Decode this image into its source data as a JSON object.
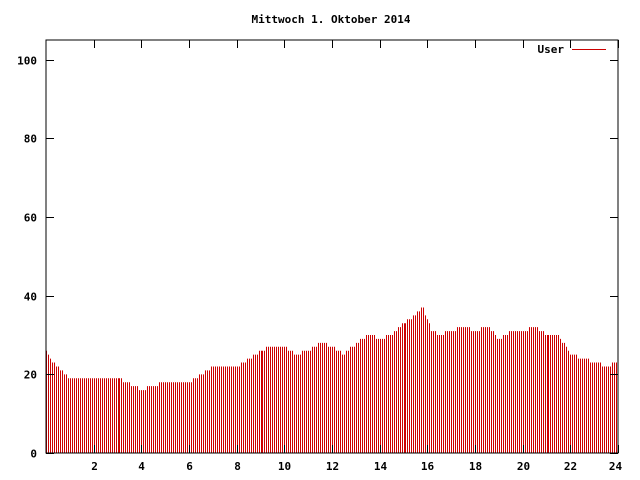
{
  "chart_data": {
    "type": "bar",
    "title": "Mittwoch 1. Oktober 2014",
    "xlabel": "",
    "ylabel": "",
    "xlim": [
      0,
      24
    ],
    "ylim": [
      0,
      105
    ],
    "x_ticks": [
      "2",
      "4",
      "6",
      "8",
      "10",
      "12",
      "14",
      "16",
      "18",
      "20",
      "22",
      "24"
    ],
    "y_ticks": [
      "0",
      "20",
      "40",
      "60",
      "80",
      "100"
    ],
    "grid": false,
    "legend_position": "top-right",
    "series": [
      {
        "name": "User",
        "color": "#cc0000",
        "hourly_anchors": [
          [
            0.0,
            26
          ],
          [
            0.25,
            23
          ],
          [
            0.5,
            22
          ],
          [
            0.75,
            20
          ],
          [
            1.0,
            19
          ],
          [
            1.5,
            19
          ],
          [
            2.0,
            19
          ],
          [
            2.5,
            19
          ],
          [
            3.0,
            19
          ],
          [
            3.4,
            18
          ],
          [
            4.0,
            16
          ],
          [
            4.5,
            17
          ],
          [
            5.0,
            18
          ],
          [
            5.5,
            18
          ],
          [
            6.0,
            18
          ],
          [
            6.5,
            20
          ],
          [
            7.0,
            22
          ],
          [
            7.5,
            22
          ],
          [
            8.0,
            22
          ],
          [
            8.5,
            24
          ],
          [
            9.0,
            26
          ],
          [
            9.5,
            27
          ],
          [
            10.0,
            27
          ],
          [
            10.5,
            25
          ],
          [
            11.0,
            26
          ],
          [
            11.5,
            28
          ],
          [
            12.0,
            27
          ],
          [
            12.5,
            25
          ],
          [
            13.0,
            28
          ],
          [
            13.5,
            30
          ],
          [
            14.0,
            29
          ],
          [
            14.5,
            30
          ],
          [
            15.0,
            33
          ],
          [
            15.5,
            35
          ],
          [
            15.8,
            37
          ],
          [
            16.2,
            31
          ],
          [
            16.5,
            30
          ],
          [
            17.0,
            31
          ],
          [
            17.5,
            32
          ],
          [
            18.0,
            31
          ],
          [
            18.5,
            32
          ],
          [
            19.0,
            29
          ],
          [
            19.5,
            31
          ],
          [
            20.0,
            31
          ],
          [
            20.5,
            32
          ],
          [
            21.0,
            30
          ],
          [
            21.5,
            30
          ],
          [
            22.0,
            25
          ],
          [
            22.5,
            24
          ],
          [
            23.0,
            23
          ],
          [
            23.5,
            22
          ],
          [
            24.0,
            23
          ]
        ]
      }
    ]
  }
}
